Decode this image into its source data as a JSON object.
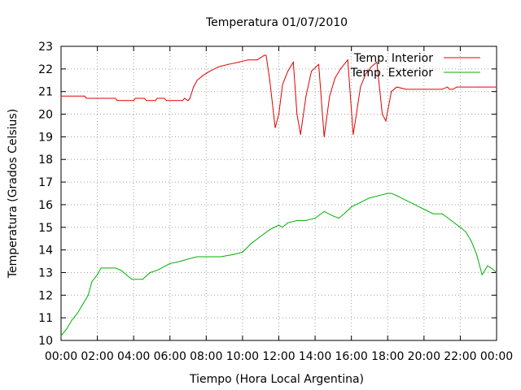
{
  "chart_data": {
    "type": "line",
    "title": "Temperatura 01/07/2010",
    "xlabel": "Tiempo (Hora Local Argentina)",
    "ylabel": "Temperatura (Grados Celsius)",
    "x_unit": "hours",
    "xlim": [
      0,
      24
    ],
    "ylim": [
      10,
      23
    ],
    "x_ticks": [
      0,
      2,
      4,
      6,
      8,
      10,
      12,
      14,
      16,
      18,
      20,
      22,
      24
    ],
    "x_tick_labels": [
      "00:00",
      "02:00",
      "04:00",
      "06:00",
      "08:00",
      "10:00",
      "12:00",
      "14:00",
      "16:00",
      "18:00",
      "20:00",
      "22:00",
      "00:00"
    ],
    "y_ticks": [
      10,
      11,
      12,
      13,
      14,
      15,
      16,
      17,
      18,
      19,
      20,
      21,
      22,
      23
    ],
    "y_tick_labels": [
      "10",
      "11",
      "12",
      "13",
      "14",
      "15",
      "16",
      "17",
      "18",
      "19",
      "20",
      "21",
      "22",
      "23"
    ],
    "grid": true,
    "legend_position": "top-right",
    "series": [
      {
        "name": "Temp. Interior",
        "color": "#e00000",
        "x": [
          0,
          1.3,
          1.4,
          3.0,
          3.1,
          4.0,
          4.1,
          4.6,
          4.7,
          5.2,
          5.3,
          5.7,
          5.8,
          6.7,
          6.8,
          7.0,
          7.1,
          7.3,
          7.5,
          7.8,
          8.2,
          8.7,
          9.2,
          9.8,
          10.3,
          10.8,
          11.2,
          11.3,
          11.5,
          11.8,
          12.0,
          12.2,
          12.5,
          12.8,
          13.0,
          13.2,
          13.5,
          13.8,
          14.2,
          14.5,
          14.8,
          15.1,
          15.4,
          15.8,
          16.1,
          16.2,
          16.5,
          16.8,
          17.1,
          17.4,
          17.7,
          17.9,
          18.2,
          18.5,
          19.0,
          20.0,
          21.0,
          21.3,
          21.4,
          21.6,
          21.8,
          22.0,
          23.0,
          24.0
        ],
        "y": [
          20.8,
          20.8,
          20.7,
          20.7,
          20.6,
          20.6,
          20.7,
          20.7,
          20.6,
          20.6,
          20.7,
          20.7,
          20.6,
          20.6,
          20.7,
          20.6,
          20.7,
          21.2,
          21.5,
          21.7,
          21.9,
          22.1,
          22.2,
          22.3,
          22.4,
          22.4,
          22.6,
          22.6,
          21.5,
          19.4,
          20.0,
          21.3,
          21.9,
          22.3,
          20.0,
          19.1,
          20.8,
          21.9,
          22.2,
          19.0,
          20.8,
          21.6,
          22.0,
          22.4,
          19.1,
          19.6,
          21.2,
          21.8,
          22.1,
          22.3,
          20.0,
          19.7,
          21.0,
          21.2,
          21.1,
          21.1,
          21.1,
          21.2,
          21.1,
          21.1,
          21.2,
          21.2,
          21.2,
          21.2
        ]
      },
      {
        "name": "Temp. Exterior",
        "color": "#00b000",
        "x": [
          0,
          0.3,
          0.6,
          0.9,
          1.2,
          1.5,
          1.7,
          2.0,
          2.2,
          2.5,
          3.0,
          3.3,
          3.6,
          3.9,
          4.5,
          4.9,
          5.3,
          6.0,
          6.6,
          7.0,
          7.5,
          8.0,
          8.8,
          9.5,
          10.0,
          10.5,
          11.0,
          11.5,
          12.0,
          12.2,
          12.5,
          13.0,
          13.5,
          14.0,
          14.5,
          15.0,
          15.3,
          15.6,
          16.0,
          16.5,
          17.0,
          17.5,
          18.0,
          18.2,
          18.5,
          19.0,
          19.5,
          20.0,
          20.5,
          21.0,
          21.5,
          22.0,
          22.3,
          22.6,
          22.9,
          23.2,
          23.5,
          23.7,
          24.0
        ],
        "y": [
          10.2,
          10.5,
          10.9,
          11.2,
          11.6,
          12.0,
          12.6,
          12.9,
          13.2,
          13.2,
          13.2,
          13.1,
          12.9,
          12.7,
          12.7,
          13.0,
          13.1,
          13.4,
          13.5,
          13.6,
          13.7,
          13.7,
          13.7,
          13.8,
          13.9,
          14.3,
          14.6,
          14.9,
          15.1,
          15.0,
          15.2,
          15.3,
          15.3,
          15.4,
          15.7,
          15.5,
          15.4,
          15.6,
          15.9,
          16.1,
          16.3,
          16.4,
          16.5,
          16.5,
          16.4,
          16.2,
          16.0,
          15.8,
          15.6,
          15.6,
          15.3,
          15.0,
          14.8,
          14.4,
          13.8,
          12.9,
          13.3,
          13.2,
          13.0
        ]
      }
    ]
  }
}
